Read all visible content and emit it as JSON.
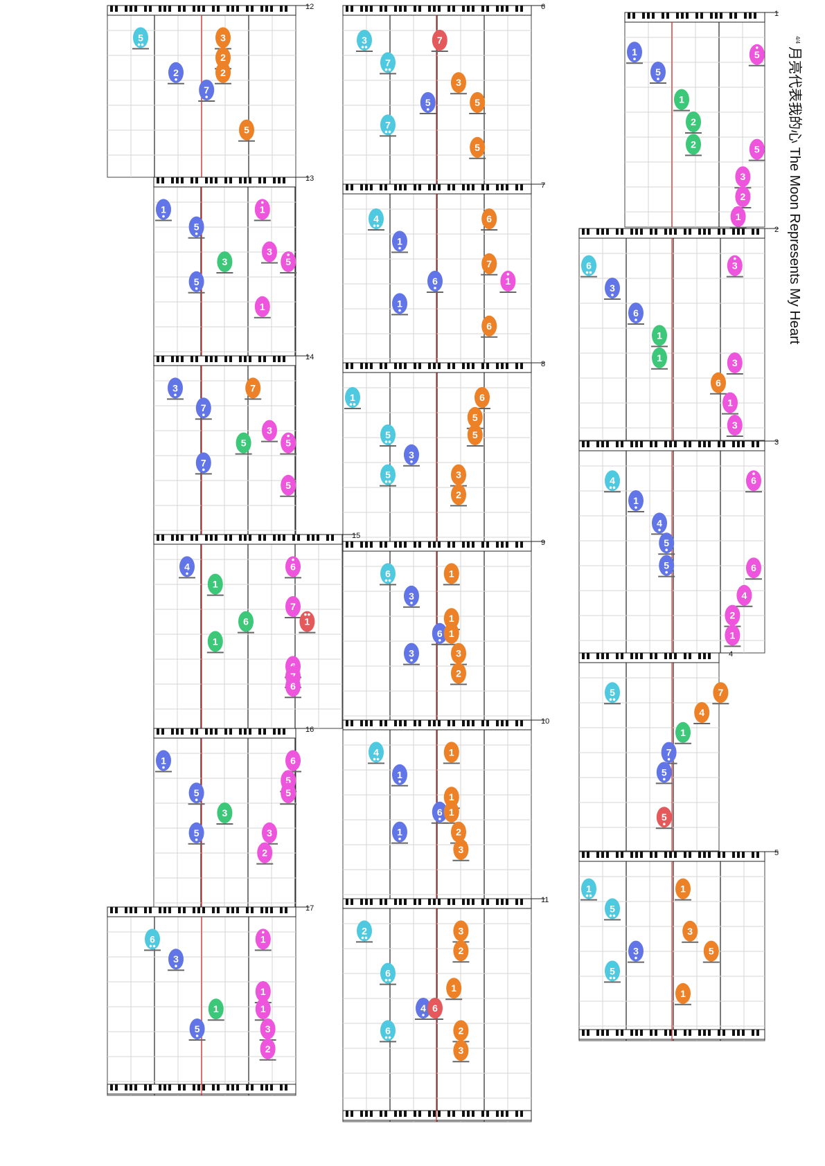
{
  "title": "月亮代表我的心 The Moon Represents My Heart",
  "time_signature": "4/4",
  "colors": {
    "cyan": "#4fc9df",
    "blue": "#6175e6",
    "green": "#3cc878",
    "orange": "#ec8128",
    "magenta": "#ee55dd",
    "red": "#e4595b",
    "playhead": "#e03030",
    "grid": "#d6d6d6",
    "bar": "#111111"
  },
  "measures": [
    {
      "number": "1",
      "notes": [
        {
          "d": "1",
          "c": "blue",
          "col": 0,
          "row": 1.2,
          "oct": -1
        },
        {
          "d": "5",
          "c": "blue",
          "col": 1,
          "row": 2.0,
          "oct": -1
        },
        {
          "d": "1",
          "c": "green",
          "col": 2,
          "row": 3.1
        },
        {
          "d": "2",
          "c": "green",
          "col": 2.5,
          "row": 4.0
        },
        {
          "d": "2",
          "c": "green",
          "col": 2.5,
          "row": 4.9
        },
        {
          "d": "5",
          "c": "magenta",
          "col": 5.2,
          "row": 1.3,
          "oct": 1
        },
        {
          "d": "5",
          "c": "magenta",
          "col": 5.2,
          "row": 5.1
        },
        {
          "d": "3",
          "c": "magenta",
          "col": 4.6,
          "row": 6.2
        },
        {
          "d": "2",
          "c": "magenta",
          "col": 4.6,
          "row": 7.0
        },
        {
          "d": "1",
          "c": "magenta",
          "col": 4.4,
          "row": 7.8
        }
      ]
    },
    {
      "number": "2",
      "notes": [
        {
          "d": "6",
          "c": "cyan",
          "col": 0,
          "row": 1.1,
          "oct": -2
        },
        {
          "d": "3",
          "c": "blue",
          "col": 1,
          "row": 2.0,
          "oct": -1
        },
        {
          "d": "6",
          "c": "blue",
          "col": 2,
          "row": 3.0,
          "oct": -1
        },
        {
          "d": "1",
          "c": "green",
          "col": 3,
          "row": 3.9
        },
        {
          "d": "1",
          "c": "green",
          "col": 3,
          "row": 4.8
        },
        {
          "d": "6",
          "c": "orange",
          "col": 5.5,
          "row": 5.8
        },
        {
          "d": "3",
          "c": "magenta",
          "col": 6.2,
          "row": 1.1,
          "oct": 1
        },
        {
          "d": "3",
          "c": "magenta",
          "col": 6.2,
          "row": 5.0
        },
        {
          "d": "1",
          "c": "magenta",
          "col": 6.0,
          "row": 6.6
        },
        {
          "d": "3",
          "c": "magenta",
          "col": 6.2,
          "row": 7.5
        }
      ]
    },
    {
      "number": "3",
      "notes": [
        {
          "d": "4",
          "c": "cyan",
          "col": 1,
          "row": 1.2,
          "oct": -2
        },
        {
          "d": "1",
          "c": "blue",
          "col": 2,
          "row": 2.0,
          "oct": -1
        },
        {
          "d": "4",
          "c": "blue",
          "col": 3,
          "row": 2.9,
          "oct": -1
        },
        {
          "d": "5",
          "c": "blue",
          "col": 3.3,
          "row": 3.7,
          "oct": -1
        },
        {
          "d": "5",
          "c": "blue",
          "col": 3.3,
          "row": 4.6,
          "oct": -1
        },
        {
          "d": "6",
          "c": "magenta",
          "col": 7.0,
          "row": 1.2,
          "oct": 1
        },
        {
          "d": "6",
          "c": "magenta",
          "col": 7.0,
          "row": 4.7
        },
        {
          "d": "4",
          "c": "magenta",
          "col": 6.6,
          "row": 5.8
        },
        {
          "d": "2",
          "c": "magenta",
          "col": 6.1,
          "row": 6.6
        },
        {
          "d": "1",
          "c": "magenta",
          "col": 6.1,
          "row": 7.4
        }
      ]
    },
    {
      "number": "4",
      "notes": [
        {
          "d": "5",
          "c": "cyan",
          "col": 1,
          "row": 1.2,
          "oct": -2
        },
        {
          "d": "7",
          "c": "orange",
          "col": 5.6,
          "row": 1.2
        },
        {
          "d": "4",
          "c": "orange",
          "col": 4.8,
          "row": 2.0
        },
        {
          "d": "1",
          "c": "green",
          "col": 4.0,
          "row": 2.8
        },
        {
          "d": "7",
          "c": "blue",
          "col": 3.4,
          "row": 3.6,
          "oct": -1
        },
        {
          "d": "5",
          "c": "blue",
          "col": 3.2,
          "row": 4.4,
          "oct": -1
        },
        {
          "d": "5",
          "c": "red",
          "col": 3.2,
          "row": 6.2,
          "oct": -1
        }
      ]
    },
    {
      "number": "5",
      "notes": [
        {
          "d": "1",
          "c": "cyan",
          "col": 0,
          "row": 1.1,
          "oct": -2
        },
        {
          "d": "5",
          "c": "cyan",
          "col": 1,
          "row": 1.9,
          "oct": -2
        },
        {
          "d": "3",
          "c": "blue",
          "col": 2,
          "row": 3.6,
          "oct": -1
        },
        {
          "d": "5",
          "c": "cyan",
          "col": 1,
          "row": 4.4,
          "oct": -2
        },
        {
          "d": "1",
          "c": "orange",
          "col": 4.0,
          "row": 1.1
        },
        {
          "d": "3",
          "c": "orange",
          "col": 4.3,
          "row": 2.8
        },
        {
          "d": "5",
          "c": "orange",
          "col": 5.2,
          "row": 3.6
        },
        {
          "d": "1",
          "c": "orange",
          "col": 4.0,
          "row": 5.3
        }
      ]
    },
    {
      "number": "6",
      "notes": [
        {
          "d": "3",
          "c": "cyan",
          "col": 0.5,
          "row": 1.0,
          "oct": -2
        },
        {
          "d": "7",
          "c": "cyan",
          "col": 1.5,
          "row": 1.9,
          "oct": -2
        },
        {
          "d": "7",
          "c": "red",
          "col": 3.7,
          "row": 1.0
        },
        {
          "d": "3",
          "c": "orange",
          "col": 4.5,
          "row": 2.7
        },
        {
          "d": "5",
          "c": "blue",
          "col": 3.2,
          "row": 3.5,
          "oct": -1
        },
        {
          "d": "5",
          "c": "orange",
          "col": 5.3,
          "row": 3.5
        },
        {
          "d": "7",
          "c": "cyan",
          "col": 1.5,
          "row": 4.4,
          "oct": -2
        },
        {
          "d": "5",
          "c": "orange",
          "col": 5.3,
          "row": 5.3
        }
      ]
    },
    {
      "number": "7",
      "notes": [
        {
          "d": "4",
          "c": "cyan",
          "col": 1,
          "row": 1.0,
          "oct": -2
        },
        {
          "d": "6",
          "c": "orange",
          "col": 5.8,
          "row": 1.0
        },
        {
          "d": "1",
          "c": "blue",
          "col": 2,
          "row": 1.9,
          "oct": -1
        },
        {
          "d": "7",
          "c": "orange",
          "col": 5.8,
          "row": 2.8
        },
        {
          "d": "6",
          "c": "blue",
          "col": 3.5,
          "row": 3.5,
          "oct": -1
        },
        {
          "d": "1",
          "c": "magenta",
          "col": 6.6,
          "row": 3.5,
          "oct": 1
        },
        {
          "d": "1",
          "c": "blue",
          "col": 2,
          "row": 4.4,
          "oct": -1
        },
        {
          "d": "6",
          "c": "orange",
          "col": 5.8,
          "row": 5.3
        }
      ]
    },
    {
      "number": "8",
      "notes": [
        {
          "d": "1",
          "c": "cyan",
          "col": 0,
          "row": 1.0,
          "oct": -2
        },
        {
          "d": "6",
          "c": "orange",
          "col": 5.5,
          "row": 1.0
        },
        {
          "d": "5",
          "c": "orange",
          "col": 5.2,
          "row": 1.8
        },
        {
          "d": "5",
          "c": "orange",
          "col": 5.2,
          "row": 2.5
        },
        {
          "d": "5",
          "c": "cyan",
          "col": 1.5,
          "row": 2.5,
          "oct": -2
        },
        {
          "d": "3",
          "c": "blue",
          "col": 2.5,
          "row": 3.3,
          "oct": -1
        },
        {
          "d": "5",
          "c": "cyan",
          "col": 1.5,
          "row": 4.1,
          "oct": -2
        },
        {
          "d": "3",
          "c": "orange",
          "col": 4.5,
          "row": 4.1
        },
        {
          "d": "2",
          "c": "orange",
          "col": 4.5,
          "row": 4.9
        }
      ]
    },
    {
      "number": "9",
      "notes": [
        {
          "d": "6",
          "c": "cyan",
          "col": 1.5,
          "row": 0.9,
          "oct": -2
        },
        {
          "d": "1",
          "c": "orange",
          "col": 4.2,
          "row": 0.9
        },
        {
          "d": "3",
          "c": "blue",
          "col": 2.5,
          "row": 1.8,
          "oct": -1
        },
        {
          "d": "1",
          "c": "orange",
          "col": 4.2,
          "row": 2.7
        },
        {
          "d": "6",
          "c": "blue",
          "col": 3.7,
          "row": 3.3,
          "oct": -1
        },
        {
          "d": "1",
          "c": "orange",
          "col": 4.2,
          "row": 3.3
        },
        {
          "d": "3",
          "c": "blue",
          "col": 2.5,
          "row": 4.1,
          "oct": -1
        },
        {
          "d": "3",
          "c": "orange",
          "col": 4.5,
          "row": 4.1
        },
        {
          "d": "2",
          "c": "orange",
          "col": 4.5,
          "row": 4.9
        }
      ]
    },
    {
      "number": "10",
      "notes": [
        {
          "d": "4",
          "c": "cyan",
          "col": 1,
          "row": 0.9,
          "oct": -2
        },
        {
          "d": "1",
          "c": "orange",
          "col": 4.2,
          "row": 0.9
        },
        {
          "d": "1",
          "c": "blue",
          "col": 2,
          "row": 1.8,
          "oct": -1
        },
        {
          "d": "1",
          "c": "orange",
          "col": 4.2,
          "row": 2.7
        },
        {
          "d": "6",
          "c": "blue",
          "col": 3.7,
          "row": 3.3,
          "oct": -1
        },
        {
          "d": "1",
          "c": "orange",
          "col": 4.2,
          "row": 3.3
        },
        {
          "d": "1",
          "c": "blue",
          "col": 2,
          "row": 4.1,
          "oct": -1
        },
        {
          "d": "2",
          "c": "orange",
          "col": 4.5,
          "row": 4.1
        },
        {
          "d": "3",
          "c": "orange",
          "col": 4.6,
          "row": 4.8
        }
      ]
    },
    {
      "number": "11",
      "notes": [
        {
          "d": "2",
          "c": "cyan",
          "col": 0.5,
          "row": 0.9,
          "oct": -2
        },
        {
          "d": "3",
          "c": "orange",
          "col": 4.6,
          "row": 0.9
        },
        {
          "d": "2",
          "c": "orange",
          "col": 4.6,
          "row": 1.7
        },
        {
          "d": "6",
          "c": "cyan",
          "col": 1.5,
          "row": 2.6,
          "oct": -2
        },
        {
          "d": "1",
          "c": "orange",
          "col": 4.3,
          "row": 3.2
        },
        {
          "d": "4",
          "c": "blue",
          "col": 3.0,
          "row": 4.0,
          "oct": -1
        },
        {
          "d": "6",
          "c": "red",
          "col": 3.5,
          "row": 4.0
        },
        {
          "d": "6",
          "c": "cyan",
          "col": 1.5,
          "row": 4.9,
          "oct": -2
        },
        {
          "d": "2",
          "c": "orange",
          "col": 4.6,
          "row": 4.9
        },
        {
          "d": "3",
          "c": "orange",
          "col": 4.6,
          "row": 5.7
        }
      ]
    },
    {
      "number": "12",
      "notes": [
        {
          "d": "5",
          "c": "cyan",
          "col": 1,
          "row": 0.9,
          "oct": -2
        },
        {
          "d": "3",
          "c": "orange",
          "col": 4.5,
          "row": 0.9
        },
        {
          "d": "2",
          "c": "orange",
          "col": 4.5,
          "row": 1.7
        },
        {
          "d": "2",
          "c": "blue",
          "col": 2.5,
          "row": 2.3,
          "oct": -1
        },
        {
          "d": "2",
          "c": "orange",
          "col": 4.5,
          "row": 2.3
        },
        {
          "d": "7",
          "c": "blue",
          "col": 3.8,
          "row": 3.0,
          "oct": -1
        },
        {
          "d": "5",
          "c": "orange",
          "col": 5.5,
          "row": 4.6
        }
      ]
    },
    {
      "number": "13",
      "notes": [
        {
          "d": "1",
          "c": "blue",
          "col": 0,
          "row": 0.9,
          "oct": -1
        },
        {
          "d": "1",
          "c": "magenta",
          "col": 4.2,
          "row": 0.9,
          "oct": 1
        },
        {
          "d": "5",
          "c": "blue",
          "col": 1.4,
          "row": 1.6,
          "oct": -1
        },
        {
          "d": "3",
          "c": "magenta",
          "col": 4.5,
          "row": 2.6
        },
        {
          "d": "3",
          "c": "green",
          "col": 2.6,
          "row": 3.0
        },
        {
          "d": "5",
          "c": "magenta",
          "col": 5.3,
          "row": 3.0,
          "oct": 1
        },
        {
          "d": "5",
          "c": "blue",
          "col": 1.4,
          "row": 3.8,
          "oct": -1
        },
        {
          "d": "1",
          "c": "magenta",
          "col": 4.2,
          "row": 4.8
        }
      ]
    },
    {
      "number": "14",
      "notes": [
        {
          "d": "3",
          "c": "blue",
          "col": 0.5,
          "row": 0.9,
          "oct": -1
        },
        {
          "d": "7",
          "c": "orange",
          "col": 3.8,
          "row": 0.9
        },
        {
          "d": "7",
          "c": "blue",
          "col": 1.7,
          "row": 1.7,
          "oct": -1
        },
        {
          "d": "3",
          "c": "magenta",
          "col": 4.5,
          "row": 2.6
        },
        {
          "d": "5",
          "c": "green",
          "col": 3.4,
          "row": 3.1
        },
        {
          "d": "5",
          "c": "magenta",
          "col": 5.3,
          "row": 3.1,
          "oct": 1
        },
        {
          "d": "7",
          "c": "blue",
          "col": 1.7,
          "row": 3.9,
          "oct": -1
        },
        {
          "d": "5",
          "c": "magenta",
          "col": 5.3,
          "row": 4.8
        }
      ]
    },
    {
      "number": "15",
      "notes": [
        {
          "d": "4",
          "c": "blue",
          "col": 1,
          "row": 0.9,
          "oct": -1
        },
        {
          "d": "6",
          "c": "magenta",
          "col": 5.5,
          "row": 0.9,
          "oct": 1
        },
        {
          "d": "1",
          "c": "green",
          "col": 2.2,
          "row": 1.6
        },
        {
          "d": "7",
          "c": "magenta",
          "col": 5.5,
          "row": 2.5
        },
        {
          "d": "6",
          "c": "green",
          "col": 3.5,
          "row": 3.1
        },
        {
          "d": "1",
          "c": "red",
          "col": 6.1,
          "row": 3.1,
          "oct": 2
        },
        {
          "d": "1",
          "c": "green",
          "col": 2.2,
          "row": 3.9
        },
        {
          "d": "6",
          "c": "magenta",
          "col": 5.5,
          "row": 4.9
        },
        {
          "d": "7",
          "c": "magenta",
          "col": 5.5,
          "row": 5.3
        },
        {
          "d": "6",
          "c": "magenta",
          "col": 5.5,
          "row": 5.7
        }
      ]
    },
    {
      "number": "16",
      "notes": [
        {
          "d": "1",
          "c": "blue",
          "col": 0,
          "row": 0.9,
          "oct": -1
        },
        {
          "d": "6",
          "c": "magenta",
          "col": 5.5,
          "row": 0.9
        },
        {
          "d": "5",
          "c": "magenta",
          "col": 5.3,
          "row": 1.7
        },
        {
          "d": "5",
          "c": "magenta",
          "col": 5.3,
          "row": 2.2
        },
        {
          "d": "5",
          "c": "blue",
          "col": 1.4,
          "row": 2.2,
          "oct": -1
        },
        {
          "d": "3",
          "c": "green",
          "col": 2.6,
          "row": 3.0
        },
        {
          "d": "5",
          "c": "blue",
          "col": 1.4,
          "row": 3.8,
          "oct": -1
        },
        {
          "d": "3",
          "c": "magenta",
          "col": 4.5,
          "row": 3.8
        },
        {
          "d": "2",
          "c": "magenta",
          "col": 4.3,
          "row": 4.6
        }
      ]
    },
    {
      "number": "17",
      "notes": [
        {
          "d": "6",
          "c": "cyan",
          "col": 1.5,
          "row": 0.9,
          "oct": -2
        },
        {
          "d": "1",
          "c": "magenta",
          "col": 6.2,
          "row": 0.9,
          "oct": 1
        },
        {
          "d": "3",
          "c": "blue",
          "col": 2.5,
          "row": 1.7,
          "oct": -1
        },
        {
          "d": "1",
          "c": "magenta",
          "col": 6.2,
          "row": 3.0
        },
        {
          "d": "1",
          "c": "magenta",
          "col": 6.2,
          "row": 3.7
        },
        {
          "d": "1",
          "c": "green",
          "col": 4.2,
          "row": 3.7
        },
        {
          "d": "5",
          "c": "blue",
          "col": 3.4,
          "row": 4.5,
          "oct": -1
        },
        {
          "d": "3",
          "c": "magenta",
          "col": 6.4,
          "row": 4.5
        },
        {
          "d": "2",
          "c": "magenta",
          "col": 6.4,
          "row": 5.3
        }
      ]
    }
  ]
}
